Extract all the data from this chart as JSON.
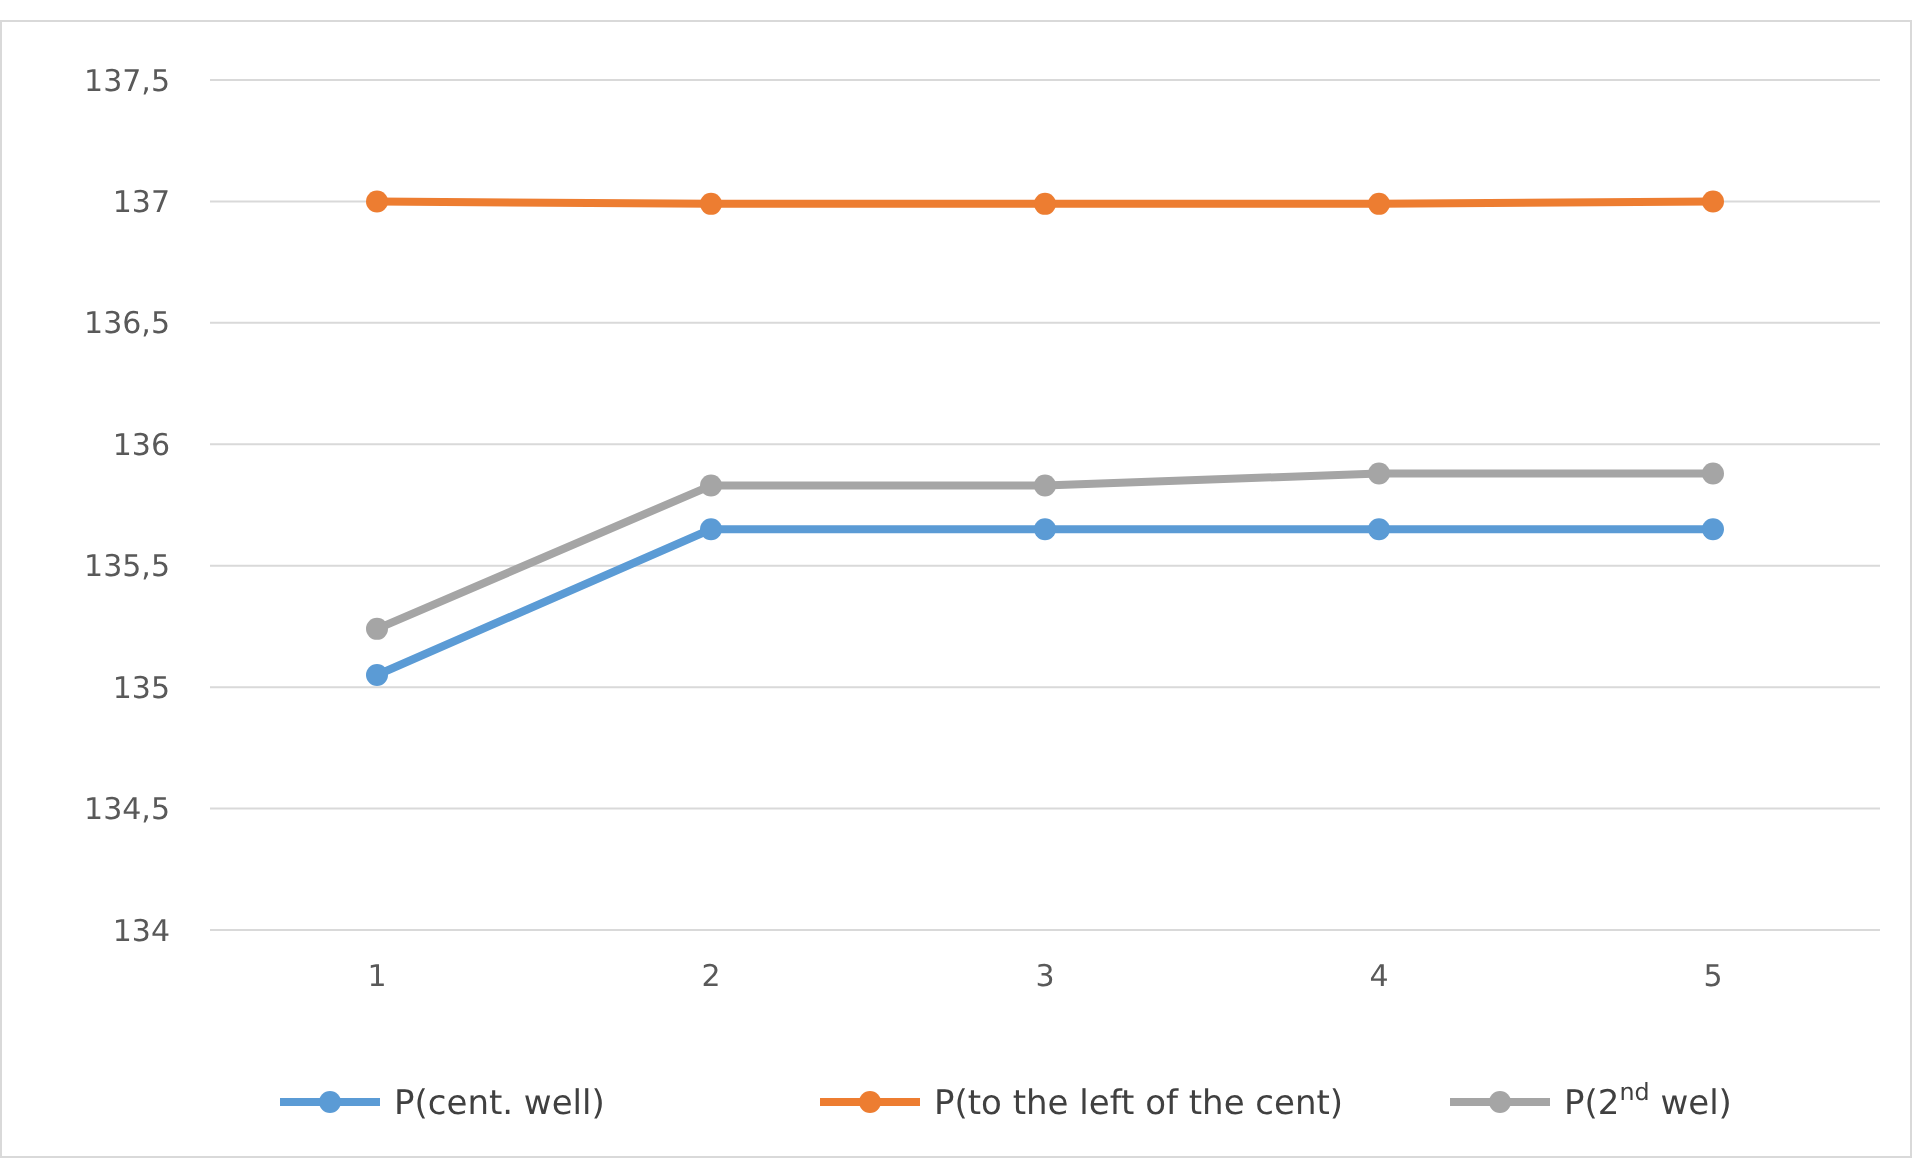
{
  "chart_data": {
    "type": "line",
    "categories": [
      "1",
      "2",
      "3",
      "4",
      "5"
    ],
    "series": [
      {
        "name": "P(cent. well)",
        "color": "#5b9bd5",
        "values": [
          135.05,
          135.65,
          135.65,
          135.65,
          135.65
        ]
      },
      {
        "name": "P(to the left of the cent)",
        "color": "#ed7d31",
        "values": [
          137,
          136.99,
          136.99,
          136.99,
          137
        ]
      },
      {
        "name": "P(2$^{nd}$ wel)",
        "color": "#a5a5a5",
        "values": [
          135.24,
          135.83,
          135.83,
          135.88,
          135.88
        ]
      }
    ],
    "ylim": [
      134,
      137.5
    ],
    "yticks": [
      {
        "value": 134,
        "label": "134"
      },
      {
        "value": 134.5,
        "label": "134,5"
      },
      {
        "value": 135,
        "label": "135"
      },
      {
        "value": 135.5,
        "label": "135,5"
      },
      {
        "value": 136,
        "label": "136"
      },
      {
        "value": 136.5,
        "label": "136,5"
      },
      {
        "value": 137,
        "label": "137"
      },
      {
        "value": 137.5,
        "label": "137,5"
      }
    ],
    "grid": "y",
    "legend": "bottom",
    "marker": "circle",
    "line_style": "solid"
  }
}
